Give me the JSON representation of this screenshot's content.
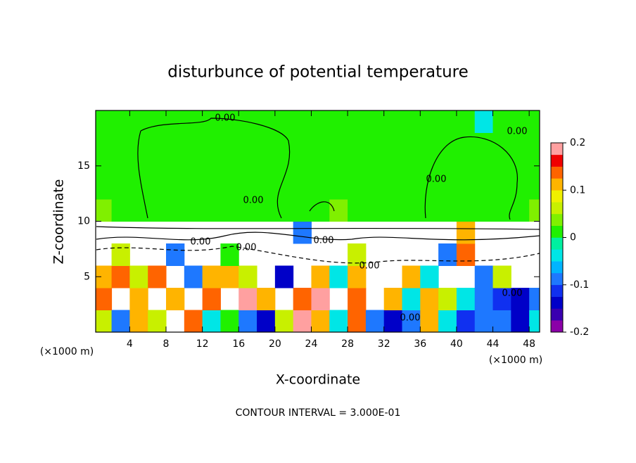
{
  "chart_data": {
    "type": "heatmap",
    "title": "disturbunce of potential temperature",
    "x_label": "X-coordinate",
    "y_label": "Z-coordinate",
    "y_unit_label": "(×1000 m)",
    "x_unit_label": "(×1000 m)",
    "footer": "CONTOUR INTERVAL = 3.000E-01",
    "xlim": [
      0.25,
      49.15
    ],
    "ylim": [
      0,
      20
    ],
    "xticks": [
      4,
      8,
      12,
      16,
      20,
      24,
      28,
      32,
      36,
      40,
      44,
      48
    ],
    "yticks": [
      5,
      10,
      15
    ],
    "x": [
      1,
      3,
      5,
      7,
      9,
      11,
      13,
      15,
      17,
      19,
      21,
      23,
      25,
      27,
      29,
      31,
      33,
      35,
      37,
      39,
      41,
      43,
      45,
      47,
      49
    ],
    "y": [
      1,
      3,
      5,
      7,
      9,
      11,
      13,
      15,
      17,
      19
    ],
    "values": [
      [
        0.05,
        -0.1,
        0.1,
        0.05,
        null,
        0.15,
        -0.05,
        0.02,
        -0.1,
        -0.15,
        0.05,
        0.2,
        0.1,
        -0.05,
        0.15,
        -0.1,
        -0.15,
        -0.1,
        0.1,
        -0.05,
        -0.12,
        -0.08,
        -0.1,
        -0.15,
        -0.05
      ],
      [
        0.15,
        null,
        0.12,
        null,
        0.1,
        null,
        0.15,
        null,
        0.18,
        0.1,
        null,
        0.15,
        0.18,
        null,
        0.15,
        null,
        0.12,
        -0.05,
        0.1,
        0.05,
        -0.05,
        -0.1,
        -0.12,
        -0.15,
        -0.1
      ],
      [
        0.1,
        0.15,
        0.05,
        0.15,
        null,
        -0.1,
        0.12,
        0.1,
        0.05,
        null,
        -0.15,
        null,
        0.12,
        -0.05,
        0.1,
        null,
        null,
        0.1,
        -0.05,
        null,
        null,
        -0.1,
        0.05,
        null,
        null
      ],
      [
        null,
        0.05,
        null,
        null,
        -0.1,
        null,
        null,
        0.02,
        null,
        null,
        null,
        null,
        null,
        null,
        0.05,
        null,
        null,
        null,
        null,
        -0.1,
        0.15,
        null,
        null,
        null,
        null
      ],
      [
        null,
        null,
        null,
        null,
        null,
        null,
        null,
        null,
        null,
        null,
        null,
        -0.1,
        null,
        null,
        null,
        null,
        null,
        null,
        null,
        null,
        0.1,
        null,
        null,
        null,
        null
      ],
      [
        0.03,
        0.005,
        0.005,
        0.005,
        0.005,
        0.005,
        0.005,
        0.005,
        0.005,
        0.005,
        0.005,
        0.005,
        0.005,
        0.03,
        0.005,
        0.005,
        0.005,
        0.005,
        0.005,
        0.005,
        0.005,
        0.005,
        0.005,
        0.005,
        0.03
      ],
      [
        0.005,
        0.005,
        0.005,
        0.005,
        0.005,
        0.005,
        0.005,
        0.005,
        0.005,
        0.005,
        0.005,
        0.005,
        0.005,
        0.005,
        0.005,
        0.005,
        0.005,
        0.005,
        0.005,
        0.005,
        0.005,
        0.005,
        0.005,
        0.005,
        0.005
      ],
      [
        0.005,
        0.005,
        0.005,
        0.005,
        0.005,
        0.005,
        0.005,
        0.005,
        0.005,
        0.005,
        0.005,
        0.005,
        0.005,
        0.005,
        0.005,
        0.005,
        0.005,
        0.005,
        0.005,
        0.005,
        0.005,
        0.005,
        0.005,
        0.005,
        0.005
      ],
      [
        0.005,
        0.005,
        0.005,
        0.005,
        0.005,
        0.005,
        0.005,
        0.005,
        0.005,
        0.005,
        0.005,
        0.005,
        0.005,
        0.005,
        0.005,
        0.005,
        0.005,
        0.005,
        0.005,
        0.005,
        0.005,
        0.005,
        0.005,
        0.005,
        0.005
      ],
      [
        0.005,
        0.005,
        0.005,
        0.005,
        0.005,
        0.005,
        0.005,
        0.005,
        0.005,
        0.005,
        0.005,
        0.005,
        0.005,
        0.005,
        0.005,
        0.005,
        0.005,
        0.005,
        0.005,
        0.005,
        0.005,
        -0.05,
        0.005,
        0.005,
        0.005
      ]
    ],
    "colorbar": {
      "lim": [
        -0.2,
        0.2
      ],
      "ticks": [
        -0.2,
        -0.1,
        0,
        0.1,
        0.2
      ],
      "colors": [
        "#8b00a8",
        "#3a00b0",
        "#0000c8",
        "#1030f0",
        "#1e78ff",
        "#00b4ff",
        "#00e6e6",
        "#00f0a0",
        "#20f000",
        "#80f000",
        "#c8f000",
        "#f0f000",
        "#ffb400",
        "#ff6400",
        "#f00000",
        "#ffa0a0"
      ]
    },
    "contour_labels": [
      "0.00",
      "0.00",
      "0.00",
      "0.00",
      "0.00",
      "0.00",
      "0.00",
      "0.00",
      "0.00",
      "0.00"
    ]
  }
}
